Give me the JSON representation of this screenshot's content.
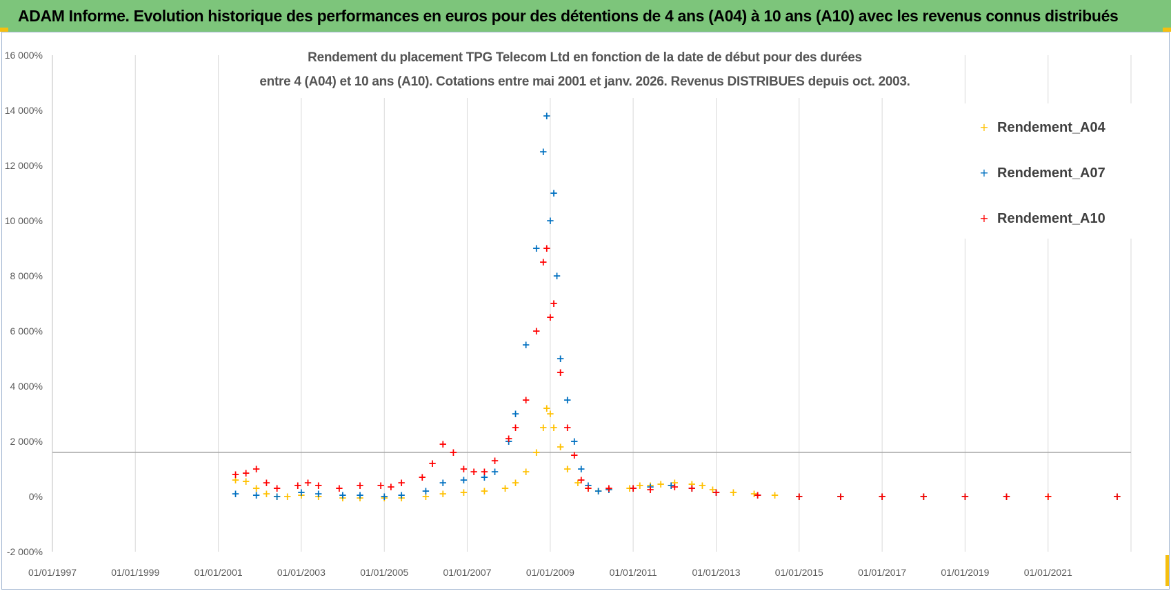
{
  "banner": {
    "text": "ADAM Informe. Evolution historique des performances en euros pour des détentions de 4 ans (A04) à 10 ans (A10) avec les revenus connus distribués",
    "color": "#7dc57b"
  },
  "chart_data": {
    "type": "scatter",
    "title_lines": [
      "Rendement du placement TPG Telecom Ltd en fonction de la date de début pour des durées",
      "entre 4 (A04) et 10 ans (A10). Cotations entre mai 2001 et janv. 2026. Revenus DISTRIBUES depuis oct. 2003."
    ],
    "xlabel": "",
    "ylabel": "",
    "x_ticks": [
      "01/01/1997",
      "01/01/1999",
      "01/01/2001",
      "01/01/2003",
      "01/01/2005",
      "01/01/2007",
      "01/01/2009",
      "01/01/2011",
      "01/01/2013",
      "01/01/2015",
      "01/01/2017",
      "01/01/2019",
      "01/01/2021"
    ],
    "x_range": [
      "1997-01-01",
      "2023-01-01"
    ],
    "y_ticks": [
      "-2 000%",
      "0%",
      "2 000%",
      "4 000%",
      "6 000%",
      "8 000%",
      "10 000%",
      "12 000%",
      "14 000%",
      "16 000%"
    ],
    "ylim": [
      -2000,
      16000
    ],
    "reference_line_y": 1600,
    "grid": "vertical",
    "legend_position": "top-right",
    "marker": "+",
    "series": [
      {
        "name": "Rendement_A04",
        "color": "#ffc000",
        "points": [
          [
            "2001-06-01",
            600
          ],
          [
            "2001-09-01",
            550
          ],
          [
            "2001-12-01",
            300
          ],
          [
            "2002-03-01",
            100
          ],
          [
            "2002-06-01",
            0
          ],
          [
            "2002-09-01",
            0
          ],
          [
            "2003-01-01",
            50
          ],
          [
            "2003-06-01",
            0
          ],
          [
            "2004-01-01",
            -50
          ],
          [
            "2004-06-01",
            -50
          ],
          [
            "2005-01-01",
            -50
          ],
          [
            "2005-06-01",
            -50
          ],
          [
            "2006-01-01",
            0
          ],
          [
            "2006-06-01",
            100
          ],
          [
            "2006-12-01",
            150
          ],
          [
            "2007-06-01",
            200
          ],
          [
            "2007-12-01",
            300
          ],
          [
            "2008-03-01",
            500
          ],
          [
            "2008-06-01",
            900
          ],
          [
            "2008-09-01",
            1600
          ],
          [
            "2008-11-01",
            2500
          ],
          [
            "2008-12-01",
            3200
          ],
          [
            "2009-01-01",
            3000
          ],
          [
            "2009-02-01",
            2500
          ],
          [
            "2009-04-01",
            1800
          ],
          [
            "2009-06-01",
            1000
          ],
          [
            "2009-09-01",
            500
          ],
          [
            "2009-12-01",
            300
          ],
          [
            "2010-03-01",
            200
          ],
          [
            "2010-06-01",
            250
          ],
          [
            "2010-12-01",
            300
          ],
          [
            "2011-03-01",
            400
          ],
          [
            "2011-06-01",
            400
          ],
          [
            "2011-09-01",
            450
          ],
          [
            "2012-01-01",
            500
          ],
          [
            "2012-06-01",
            450
          ],
          [
            "2012-09-01",
            400
          ],
          [
            "2012-12-01",
            250
          ],
          [
            "2013-06-01",
            150
          ],
          [
            "2013-12-01",
            100
          ],
          [
            "2014-06-01",
            50
          ],
          [
            "2015-01-01",
            0
          ],
          [
            "2016-01-01",
            0
          ],
          [
            "2017-01-01",
            0
          ],
          [
            "2018-01-01",
            0
          ],
          [
            "2019-01-01",
            0
          ],
          [
            "2020-01-01",
            0
          ],
          [
            "2021-01-01",
            0
          ],
          [
            "2022-09-01",
            0
          ]
        ]
      },
      {
        "name": "Rendement_A07",
        "color": "#0070c0",
        "points": [
          [
            "2001-06-01",
            100
          ],
          [
            "2001-12-01",
            50
          ],
          [
            "2002-06-01",
            0
          ],
          [
            "2003-01-01",
            150
          ],
          [
            "2003-06-01",
            100
          ],
          [
            "2004-01-01",
            50
          ],
          [
            "2004-06-01",
            50
          ],
          [
            "2005-01-01",
            0
          ],
          [
            "2005-06-01",
            50
          ],
          [
            "2006-01-01",
            200
          ],
          [
            "2006-06-01",
            500
          ],
          [
            "2006-12-01",
            600
          ],
          [
            "2007-06-01",
            700
          ],
          [
            "2007-09-01",
            900
          ],
          [
            "2008-01-01",
            2000
          ],
          [
            "2008-03-01",
            3000
          ],
          [
            "2008-06-01",
            5500
          ],
          [
            "2008-09-01",
            9000
          ],
          [
            "2008-11-01",
            12500
          ],
          [
            "2008-12-01",
            13800
          ],
          [
            "2009-01-01",
            10000
          ],
          [
            "2009-02-01",
            11000
          ],
          [
            "2009-03-01",
            8000
          ],
          [
            "2009-04-01",
            5000
          ],
          [
            "2009-06-01",
            3500
          ],
          [
            "2009-08-01",
            2000
          ],
          [
            "2009-10-01",
            1000
          ],
          [
            "2009-12-01",
            400
          ],
          [
            "2010-03-01",
            200
          ],
          [
            "2010-06-01",
            250
          ],
          [
            "2011-01-01",
            300
          ],
          [
            "2011-06-01",
            350
          ],
          [
            "2011-12-01",
            400
          ],
          [
            "2012-06-01",
            300
          ],
          [
            "2013-01-01",
            150
          ],
          [
            "2014-01-01",
            50
          ],
          [
            "2015-01-01",
            0
          ],
          [
            "2016-01-01",
            0
          ],
          [
            "2017-01-01",
            0
          ],
          [
            "2018-01-01",
            0
          ],
          [
            "2019-01-01",
            0
          ],
          [
            "2020-01-01",
            0
          ],
          [
            "2022-09-01",
            0
          ]
        ]
      },
      {
        "name": "Rendement_A10",
        "color": "#ff0000",
        "points": [
          [
            "2001-06-01",
            800
          ],
          [
            "2001-09-01",
            850
          ],
          [
            "2001-12-01",
            1000
          ],
          [
            "2002-03-01",
            500
          ],
          [
            "2002-06-01",
            300
          ],
          [
            "2002-12-01",
            400
          ],
          [
            "2003-03-01",
            500
          ],
          [
            "2003-06-01",
            400
          ],
          [
            "2003-12-01",
            300
          ],
          [
            "2004-06-01",
            400
          ],
          [
            "2004-12-01",
            400
          ],
          [
            "2005-03-01",
            350
          ],
          [
            "2005-06-01",
            500
          ],
          [
            "2005-12-01",
            700
          ],
          [
            "2006-03-01",
            1200
          ],
          [
            "2006-06-01",
            1900
          ],
          [
            "2006-09-01",
            1600
          ],
          [
            "2006-12-01",
            1000
          ],
          [
            "2007-03-01",
            900
          ],
          [
            "2007-06-01",
            900
          ],
          [
            "2007-09-01",
            1300
          ],
          [
            "2008-01-01",
            2100
          ],
          [
            "2008-03-01",
            2500
          ],
          [
            "2008-06-01",
            3500
          ],
          [
            "2008-09-01",
            6000
          ],
          [
            "2008-11-01",
            8500
          ],
          [
            "2008-12-01",
            9000
          ],
          [
            "2009-01-01",
            6500
          ],
          [
            "2009-02-01",
            7000
          ],
          [
            "2009-04-01",
            4500
          ],
          [
            "2009-06-01",
            2500
          ],
          [
            "2009-08-01",
            1500
          ],
          [
            "2009-10-01",
            600
          ],
          [
            "2009-12-01",
            300
          ],
          [
            "2010-06-01",
            300
          ],
          [
            "2011-01-01",
            300
          ],
          [
            "2011-06-01",
            250
          ],
          [
            "2012-01-01",
            350
          ],
          [
            "2012-06-01",
            300
          ],
          [
            "2013-01-01",
            150
          ],
          [
            "2014-01-01",
            50
          ],
          [
            "2015-01-01",
            0
          ],
          [
            "2016-01-01",
            0
          ],
          [
            "2017-01-01",
            0
          ],
          [
            "2018-01-01",
            0
          ],
          [
            "2019-01-01",
            0
          ],
          [
            "2020-01-01",
            0
          ],
          [
            "2021-01-01",
            0
          ],
          [
            "2022-09-01",
            0
          ]
        ]
      }
    ]
  }
}
